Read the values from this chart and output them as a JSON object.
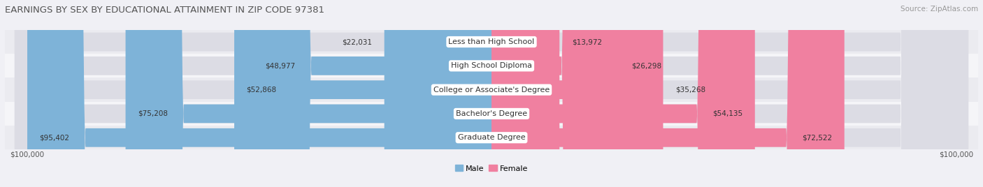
{
  "title": "EARNINGS BY SEX BY EDUCATIONAL ATTAINMENT IN ZIP CODE 97381",
  "source": "Source: ZipAtlas.com",
  "categories": [
    "Less than High School",
    "High School Diploma",
    "College or Associate's Degree",
    "Bachelor's Degree",
    "Graduate Degree"
  ],
  "male_values": [
    22031,
    48977,
    52868,
    75208,
    95402
  ],
  "female_values": [
    13972,
    26298,
    35268,
    54135,
    72522
  ],
  "male_color": "#7EB3D8",
  "female_color": "#F080A0",
  "bar_bg_color": "#DCDCE4",
  "row_bg_even": "#EBEBF0",
  "row_bg_odd": "#F5F5F8",
  "max_value": 100000,
  "xlabel_left": "$100,000",
  "xlabel_right": "$100,000",
  "legend_male": "Male",
  "legend_female": "Female",
  "title_fontsize": 9.5,
  "source_fontsize": 7.5,
  "label_fontsize": 8,
  "bar_label_fontsize": 7.5
}
